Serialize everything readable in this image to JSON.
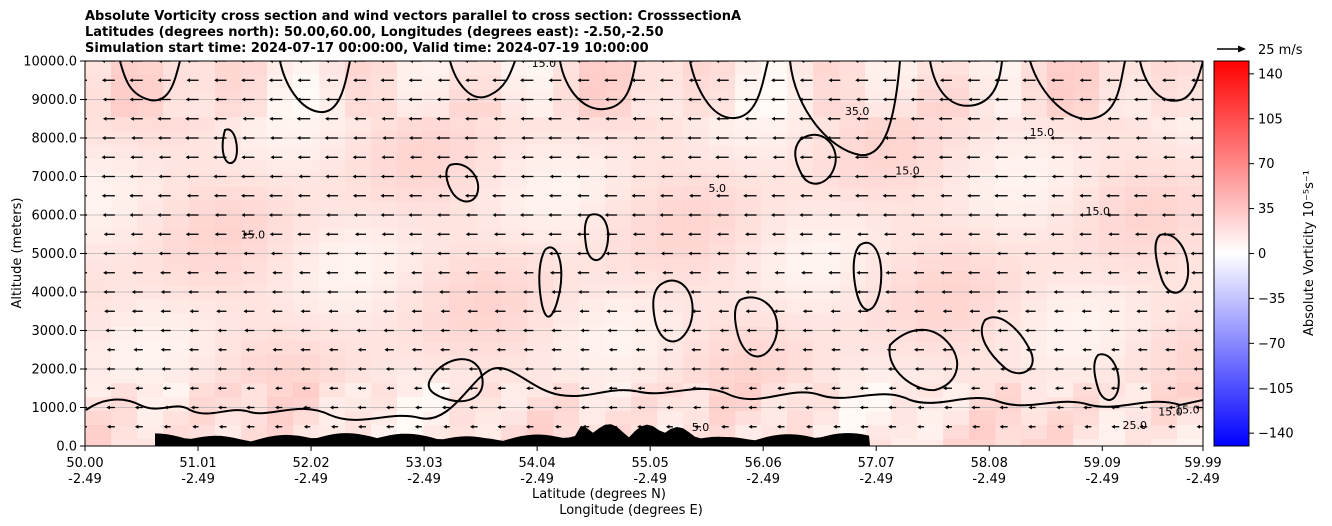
{
  "title_lines": [
    "Absolute Vorticity cross section and wind vectors parallel to cross section: CrosssectionA",
    "Latitudes (degrees north): 50.00,60.00, Longitudes (degrees east): -2.50,-2.50",
    "Simulation start time: 2024-07-17 00:00:00, Valid time: 2024-07-19 10:00:00"
  ],
  "chart_data": {
    "type": "heatmap",
    "ylabel": "Altitude (meters)",
    "xlabel_lines": [
      "Latitude (degrees N)",
      "Longitude (degrees E)"
    ],
    "xlim": [
      50.0,
      59.99
    ],
    "ylim": [
      0,
      10000
    ],
    "grid": "horizontal",
    "x_ticks": [
      {
        "lat": "50.00",
        "lon": "-2.49"
      },
      {
        "lat": "51.01",
        "lon": "-2.49"
      },
      {
        "lat": "52.02",
        "lon": "-2.49"
      },
      {
        "lat": "53.03",
        "lon": "-2.49"
      },
      {
        "lat": "54.04",
        "lon": "-2.49"
      },
      {
        "lat": "55.05",
        "lon": "-2.49"
      },
      {
        "lat": "56.06",
        "lon": "-2.49"
      },
      {
        "lat": "57.07",
        "lon": "-2.49"
      },
      {
        "lat": "58.08",
        "lon": "-2.49"
      },
      {
        "lat": "59.09",
        "lon": "-2.49"
      },
      {
        "lat": "59.99",
        "lon": "-2.49"
      }
    ],
    "y_ticks": [
      "0.0",
      "1000.0",
      "2000.0",
      "3000.0",
      "4000.0",
      "5000.0",
      "6000.0",
      "7000.0",
      "8000.0",
      "9000.0",
      "10000.0"
    ],
    "y_tick_values": [
      0,
      1000,
      2000,
      3000,
      4000,
      5000,
      6000,
      7000,
      8000,
      9000,
      10000
    ],
    "colorbar": {
      "label": "Absolute Vorticity 10⁻⁵s⁻¹",
      "min": -150,
      "max": 150,
      "ticks": [
        "140",
        "105",
        "70",
        "35",
        "0",
        "−35",
        "−70",
        "−105",
        "−140"
      ],
      "tick_values": [
        140,
        105,
        70,
        35,
        0,
        -35,
        -70,
        -105,
        -140
      ],
      "cmap": [
        "#0000ff",
        "#ffffff",
        "#ff0000"
      ]
    },
    "quiver_key": "25 m/s",
    "contour_levels": [
      "5.0",
      "15.0",
      "25.0",
      "35.0"
    ],
    "contour_labels": [
      {
        "text": "15.0",
        "x": 54.1,
        "y": 9950
      },
      {
        "text": "35.0",
        "x": 56.9,
        "y": 8700
      },
      {
        "text": "15.0",
        "x": 58.55,
        "y": 8150
      },
      {
        "text": "15.0",
        "x": 57.35,
        "y": 7150
      },
      {
        "text": "5.0",
        "x": 55.65,
        "y": 6700
      },
      {
        "text": "15.0",
        "x": 59.05,
        "y": 6100
      },
      {
        "text": "15.0",
        "x": 51.5,
        "y": 5500
      },
      {
        "text": "25.0",
        "x": 59.38,
        "y": 550
      },
      {
        "text": "15.0",
        "x": 59.7,
        "y": 900
      },
      {
        "text": "15.0",
        "x": 59.85,
        "y": 950
      },
      {
        "text": "5.0",
        "x": 55.5,
        "y": 500
      }
    ],
    "wind_direction": "northward component negative (pointing left)"
  }
}
